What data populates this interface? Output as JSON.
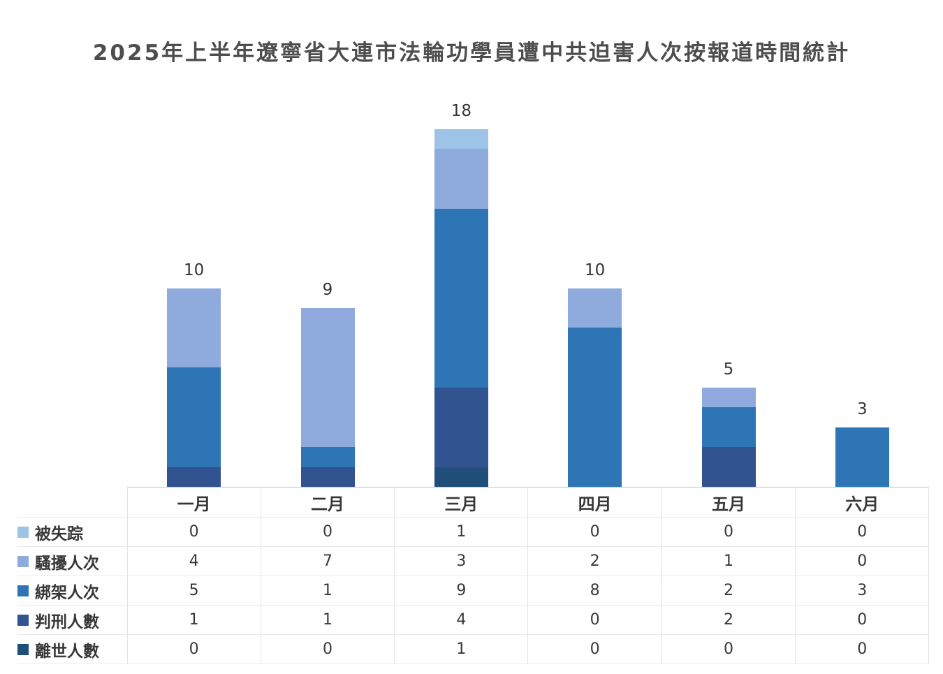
{
  "chart_data": {
    "type": "bar",
    "stacked": true,
    "title": "2025年上半年遼寧省大連市法輪功學員遭中共迫害人次按報道時間統計",
    "categories": [
      "一月",
      "二月",
      "三月",
      "四月",
      "五月",
      "六月"
    ],
    "series": [
      {
        "name": "被失踪",
        "color": "#9DC3E6",
        "values": [
          0,
          0,
          1,
          0,
          0,
          0
        ]
      },
      {
        "name": "騷擾人次",
        "color": "#8FAADC",
        "values": [
          4,
          7,
          3,
          2,
          1,
          0
        ]
      },
      {
        "name": "綁架人次",
        "color": "#2E75B6",
        "values": [
          5,
          1,
          9,
          8,
          2,
          3
        ]
      },
      {
        "name": "判刑人數",
        "color": "#31538F",
        "values": [
          1,
          1,
          4,
          0,
          2,
          0
        ]
      },
      {
        "name": "離世人數",
        "color": "#1F4E79",
        "values": [
          0,
          0,
          1,
          0,
          0,
          0
        ]
      }
    ],
    "totals": [
      10,
      9,
      18,
      10,
      5,
      3
    ],
    "ylabel": "",
    "xlabel": "",
    "ylim": [
      0,
      18
    ],
    "grid": false,
    "legend_position": "table-row-headers-left",
    "axis_line_color": "#b3c6d9",
    "stack_order_bottom_to_top": [
      "離世人數",
      "判刑人數",
      "綁架人次",
      "騷擾人次",
      "被失踪"
    ]
  }
}
